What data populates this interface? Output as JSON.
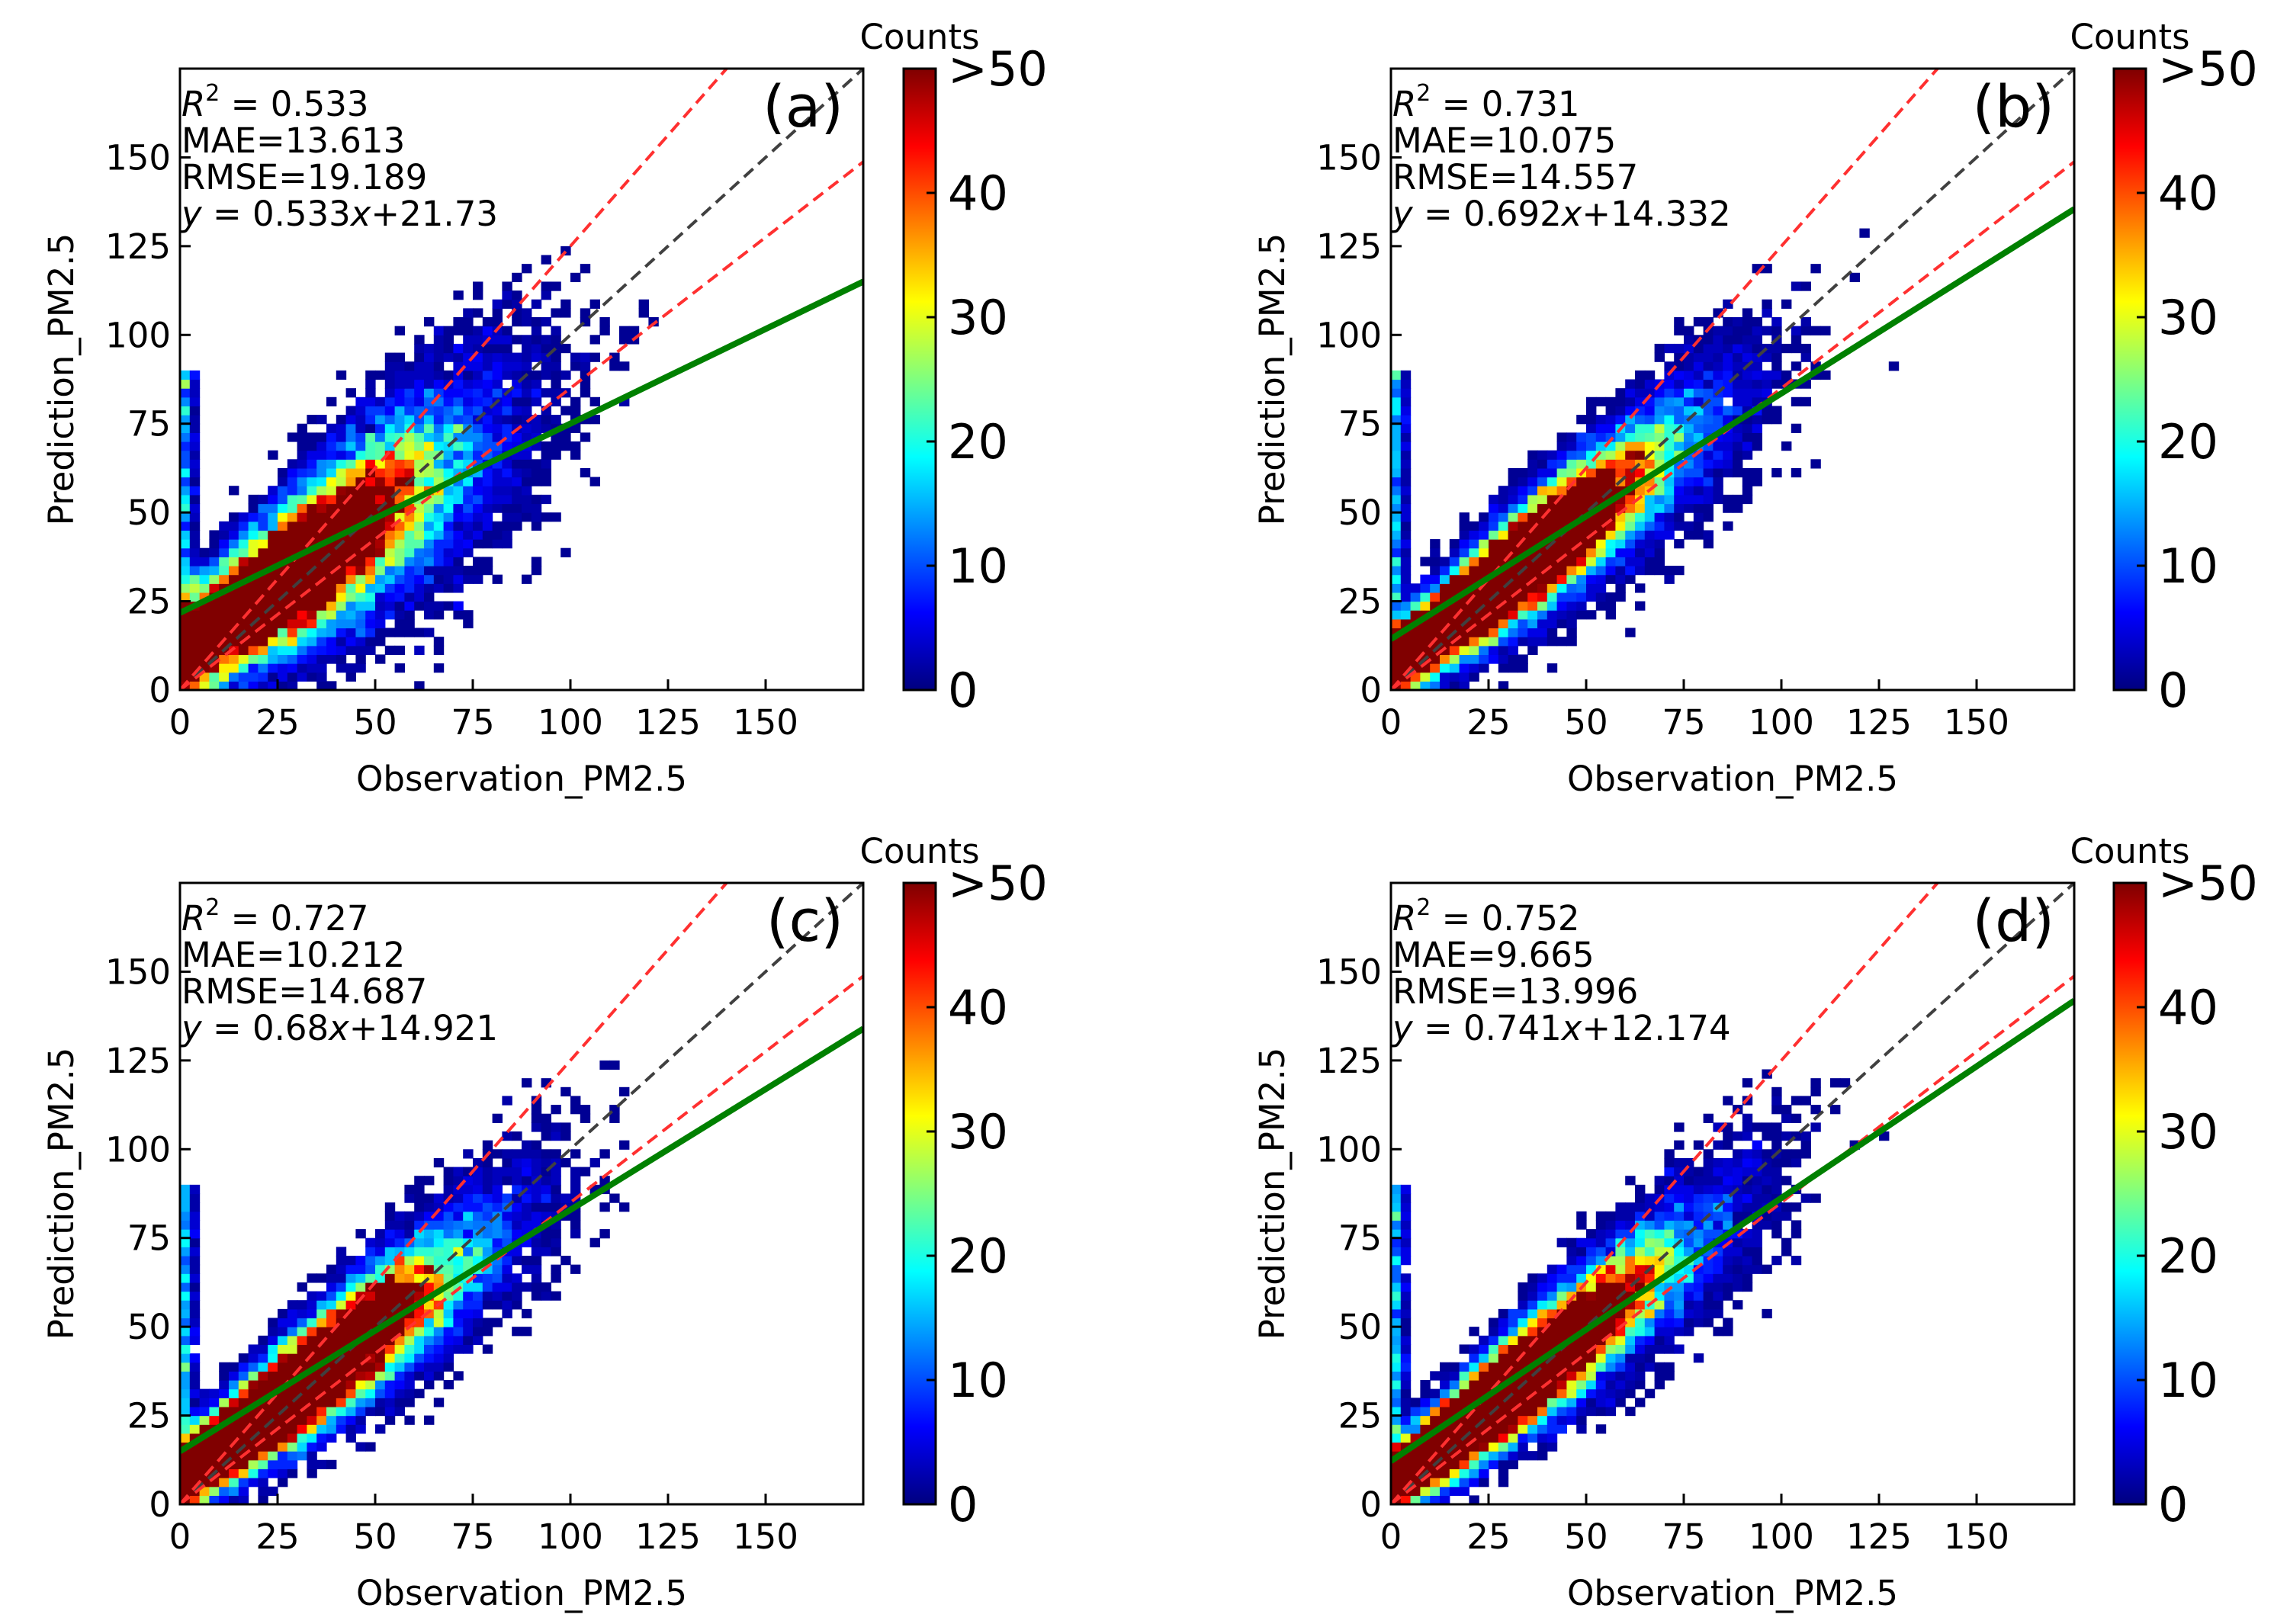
{
  "figure": {
    "colors": {
      "density_colormap": [
        "#00007f",
        "#0000ff",
        "#007fff",
        "#00ffff",
        "#7fff7f",
        "#ffff00",
        "#ff7f00",
        "#ff0000",
        "#7f0000"
      ],
      "fit_line": "#008000",
      "one_to_one_line": "#404040",
      "error_bounds": "#ff3030"
    }
  },
  "chart_data": [
    {
      "type": "heatmap",
      "panel_label": "(a)",
      "xlabel": "Observation_PM2.5",
      "ylabel": "Prediction_PM2.5",
      "xlim": [
        0,
        175
      ],
      "ylim": [
        0,
        175
      ],
      "xticks": [
        "0",
        "25",
        "50",
        "75",
        "100",
        "125",
        "150"
      ],
      "yticks": [
        "0",
        "25",
        "50",
        "75",
        "100",
        "125",
        "150"
      ],
      "stats": {
        "r2_label": "R",
        "r2_exp": "2",
        "r2_value": "= 0.533",
        "mae": "MAE=13.613",
        "rmse": "RMSE=19.189",
        "fit_y": "y",
        "fit_eq": " = 0.533",
        "fit_x": "x",
        "fit_tail": "+21.73"
      },
      "fit": {
        "slope": 0.533,
        "intercept": 21.73
      },
      "colorbar": {
        "title": "Counts",
        "ticks": [
          "0",
          "10",
          "20",
          "30",
          "40",
          ">50"
        ],
        "range": [
          0,
          50
        ]
      }
    },
    {
      "type": "heatmap",
      "panel_label": "(b)",
      "xlabel": "Observation_PM2.5",
      "ylabel": "Prediction_PM2.5",
      "xlim": [
        0,
        175
      ],
      "ylim": [
        0,
        175
      ],
      "xticks": [
        "0",
        "25",
        "50",
        "75",
        "100",
        "125",
        "150"
      ],
      "yticks": [
        "0",
        "25",
        "50",
        "75",
        "100",
        "125",
        "150"
      ],
      "stats": {
        "r2_label": "R",
        "r2_exp": "2",
        "r2_value": "= 0.731",
        "mae": "MAE=10.075",
        "rmse": "RMSE=14.557",
        "fit_y": "y",
        "fit_eq": " = 0.692",
        "fit_x": "x",
        "fit_tail": "+14.332"
      },
      "fit": {
        "slope": 0.692,
        "intercept": 14.332
      },
      "colorbar": {
        "title": "Counts",
        "ticks": [
          "0",
          "10",
          "20",
          "30",
          "40",
          ">50"
        ],
        "range": [
          0,
          50
        ]
      }
    },
    {
      "type": "heatmap",
      "panel_label": "(c)",
      "xlabel": "Observation_PM2.5",
      "ylabel": "Prediction_PM2.5",
      "xlim": [
        0,
        175
      ],
      "ylim": [
        0,
        175
      ],
      "xticks": [
        "0",
        "25",
        "50",
        "75",
        "100",
        "125",
        "150"
      ],
      "yticks": [
        "0",
        "25",
        "50",
        "75",
        "100",
        "125",
        "150"
      ],
      "stats": {
        "r2_label": "R",
        "r2_exp": "2",
        "r2_value": "= 0.727",
        "mae": "MAE=10.212",
        "rmse": "RMSE=14.687",
        "fit_y": "y",
        "fit_eq": " = 0.68",
        "fit_x": "x",
        "fit_tail": "+14.921"
      },
      "fit": {
        "slope": 0.68,
        "intercept": 14.921
      },
      "colorbar": {
        "title": "Counts",
        "ticks": [
          "0",
          "10",
          "20",
          "30",
          "40",
          ">50"
        ],
        "range": [
          0,
          50
        ]
      }
    },
    {
      "type": "heatmap",
      "panel_label": "(d)",
      "xlabel": "Observation_PM2.5",
      "ylabel": "Prediction_PM2.5",
      "xlim": [
        0,
        175
      ],
      "ylim": [
        0,
        175
      ],
      "xticks": [
        "0",
        "25",
        "50",
        "75",
        "100",
        "125",
        "150"
      ],
      "yticks": [
        "0",
        "25",
        "50",
        "75",
        "100",
        "125",
        "150"
      ],
      "stats": {
        "r2_label": "R",
        "r2_exp": "2",
        "r2_value": "= 0.752",
        "mae": "MAE=9.665",
        "rmse": "RMSE=13.996",
        "fit_y": "y",
        "fit_eq": " = 0.741",
        "fit_x": "x",
        "fit_tail": "+12.174"
      },
      "fit": {
        "slope": 0.741,
        "intercept": 12.174
      },
      "colorbar": {
        "title": "Counts",
        "ticks": [
          "0",
          "10",
          "20",
          "30",
          "40",
          ">50"
        ],
        "range": [
          0,
          50
        ]
      }
    }
  ]
}
